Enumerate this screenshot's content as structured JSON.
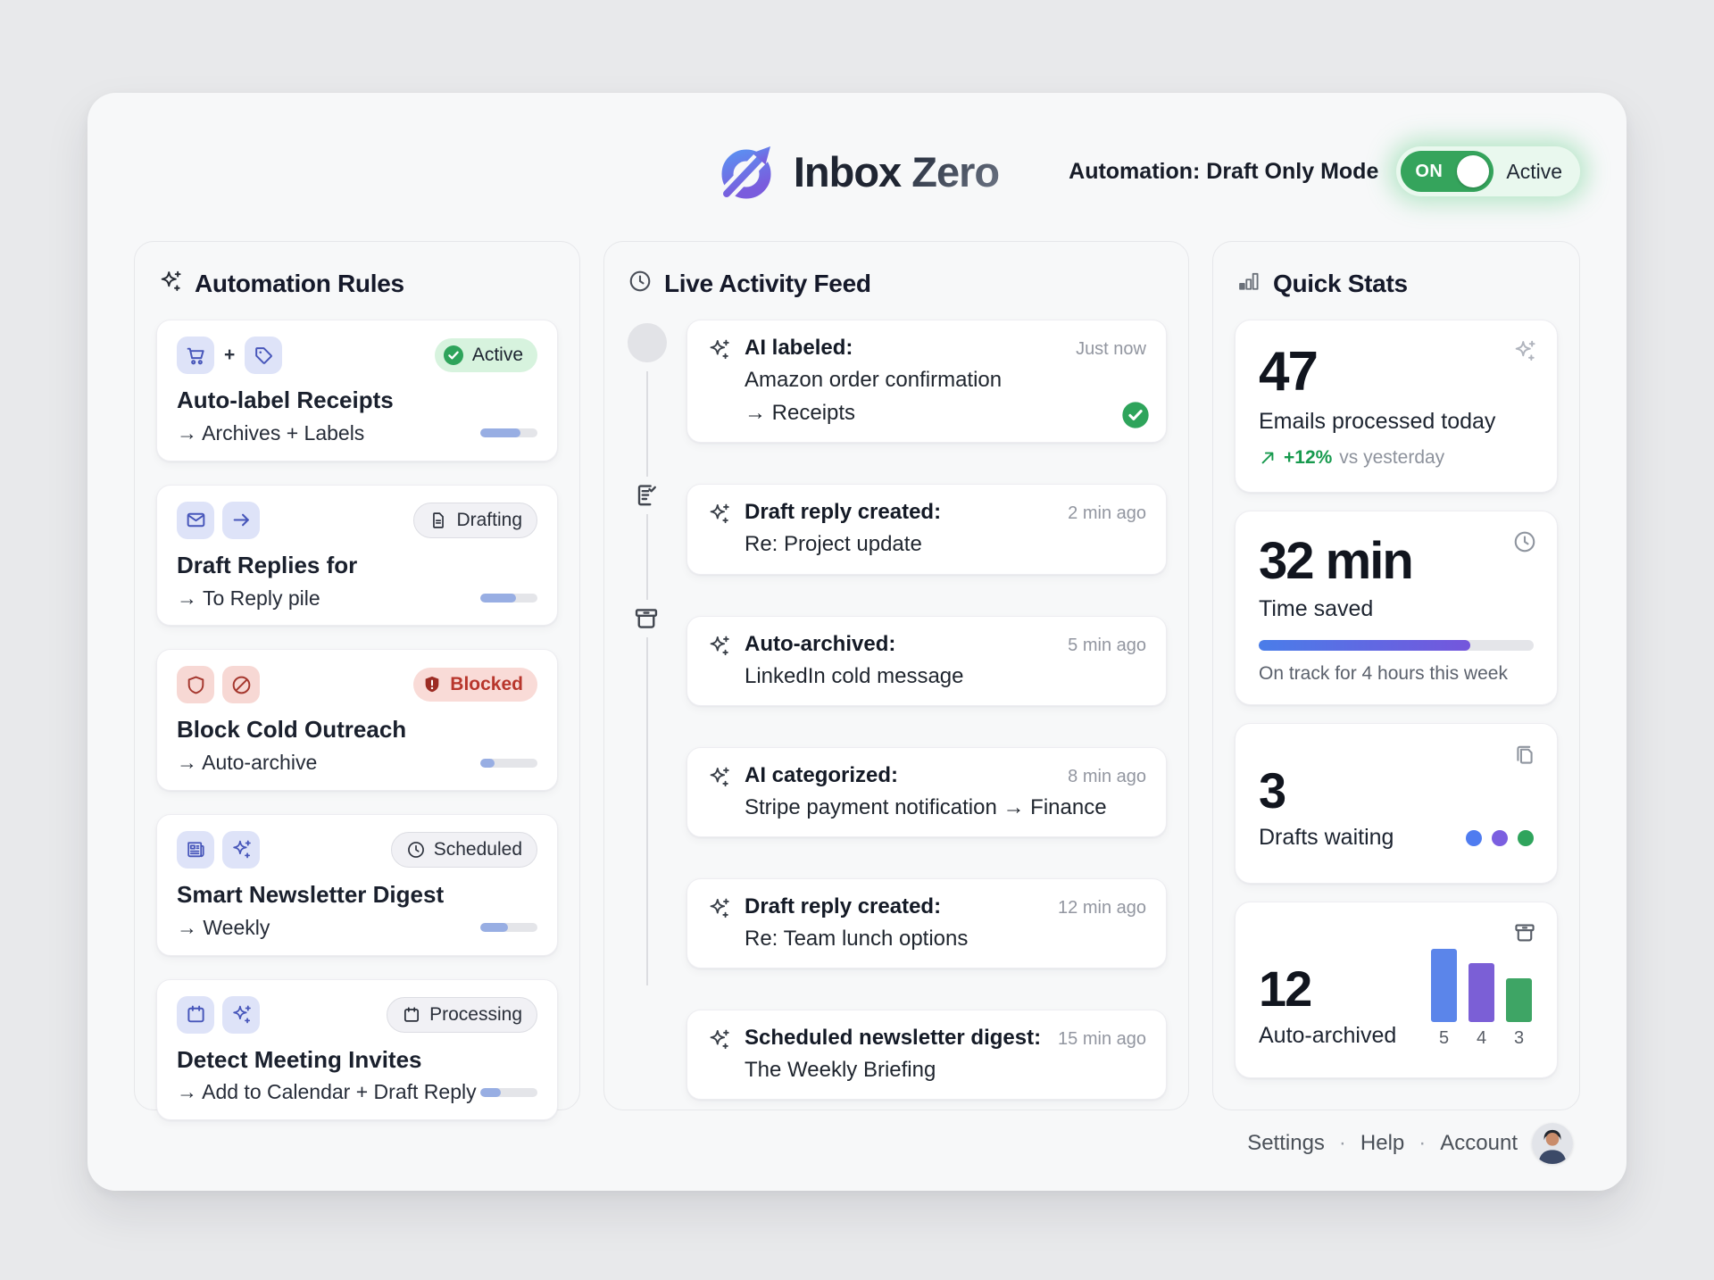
{
  "header": {
    "title_primary": "Inbox",
    "title_secondary": "Zero",
    "automation_label": "Automation: Draft Only Mode",
    "toggle_on_label": "ON",
    "toggle_status": "Active"
  },
  "automation_rules": {
    "title": "Automation Rules",
    "rules": [
      {
        "icons": [
          "cart",
          "tag"
        ],
        "joiner": "+",
        "chip_style": "blue",
        "title": "Auto-label Receipts",
        "subtitle": "→ Archives + Labels",
        "badge": {
          "label": "Active",
          "type": "active",
          "icon": "check-circle"
        },
        "progress": 70
      },
      {
        "icons": [
          "mail",
          "arrow-right"
        ],
        "chip_style": "blue",
        "title": "Draft Replies for",
        "subtitle": "→ To Reply pile",
        "badge": {
          "label": "Drafting",
          "type": "neutral",
          "icon": "document"
        },
        "progress": 62
      },
      {
        "icons": [
          "shield",
          "ban"
        ],
        "chip_style": "red",
        "title": "Block Cold Outreach",
        "subtitle": "→ Auto-archive",
        "badge": {
          "label": "Blocked",
          "type": "blocked",
          "icon": "shield-alert"
        },
        "progress": 25
      },
      {
        "icons": [
          "newspaper",
          "sparkles"
        ],
        "chip_style": "blue",
        "title": "Smart Newsletter Digest",
        "subtitle": "→ Weekly",
        "badge": {
          "label": "Scheduled",
          "type": "neutral",
          "icon": "clock"
        },
        "progress": 48
      },
      {
        "icons": [
          "calendar",
          "sparkles"
        ],
        "chip_style": "blue",
        "title": "Detect Meeting Invites",
        "subtitle": "→ Add to Calendar + Draft Reply",
        "badge": {
          "label": "Processing",
          "type": "neutral",
          "icon": "calendar"
        },
        "progress": 36
      }
    ]
  },
  "activity_feed": {
    "title": "Live Activity Feed",
    "items": [
      {
        "title": "AI labeled:",
        "lines": [
          "Amazon order confirmation",
          "→ Receipts"
        ],
        "time": "Just now",
        "check": true
      },
      {
        "title": "Draft reply created:",
        "lines": [
          "Re: Project update"
        ],
        "time": "2 min ago",
        "check": false
      },
      {
        "title": "Auto-archived:",
        "lines": [
          "LinkedIn cold message"
        ],
        "time": "5 min ago",
        "check": false
      },
      {
        "title": "AI categorized:",
        "lines": [
          "Stripe payment notification → Finance"
        ],
        "time": "8 min ago",
        "check": false
      },
      {
        "title": "Draft reply created:",
        "lines": [
          "Re: Team lunch options"
        ],
        "time": "12 min ago",
        "check": false
      },
      {
        "title": "Scheduled newsletter digest:",
        "lines": [
          "The Weekly Briefing"
        ],
        "time": "15 min ago",
        "check": false
      }
    ]
  },
  "quick_stats": {
    "title": "Quick Stats",
    "cards": [
      {
        "value": "47",
        "label": "Emails processed today",
        "trend": "+12%",
        "trend_suffix": "vs yesterday",
        "corner_icon": "sparkles"
      },
      {
        "value": "32 min",
        "label": "Time saved",
        "progress_pct": 77,
        "note": "On track for 4 hours this week",
        "corner_icon": "clock"
      },
      {
        "value": "3",
        "label": "Drafts waiting",
        "dot_colors": [
          "#4f7cf0",
          "#7b5fe0",
          "#2fa45c"
        ],
        "corner_icon": "documents"
      },
      {
        "value": "12",
        "label": "Auto-archived",
        "corner_icon": "archive",
        "chart": {
          "type": "bar",
          "categories": [
            "5",
            "4",
            "3"
          ],
          "values": [
            5,
            4,
            3
          ],
          "colors": [
            "#5b85ea",
            "#7b5fd6",
            "#3ea565"
          ]
        }
      }
    ]
  },
  "footer": {
    "links": [
      "Settings",
      "Help",
      "Account"
    ],
    "separator": "·"
  },
  "colors": {
    "accent_green": "#35a45c",
    "accent_blue": "#4a7de9",
    "accent_purple": "#7456dc",
    "blocked_red": "#b8362c"
  }
}
